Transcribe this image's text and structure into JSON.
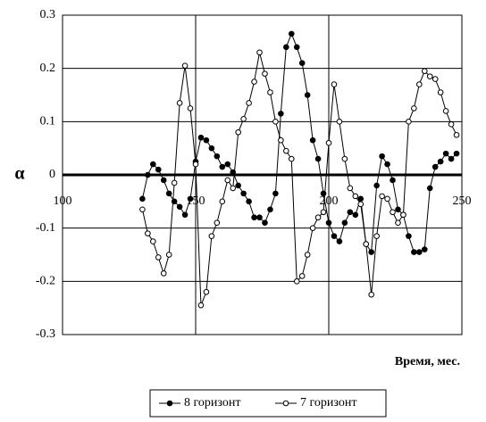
{
  "chart_data": {
    "type": "line",
    "ylabel": "α",
    "xlabel": "Время, мес.",
    "x": [
      130,
      132,
      134,
      136,
      138,
      140,
      142,
      144,
      146,
      148,
      150,
      152,
      154,
      156,
      158,
      160,
      162,
      164,
      166,
      168,
      170,
      172,
      174,
      176,
      178,
      180,
      182,
      184,
      186,
      188,
      190,
      192,
      194,
      196,
      198,
      200,
      202,
      204,
      206,
      208,
      210,
      212,
      214,
      216,
      218,
      220,
      222,
      224,
      226,
      228,
      230,
      232,
      234,
      236,
      238,
      240,
      242,
      244,
      246,
      248
    ],
    "series": [
      {
        "name": "8 горизонт",
        "color": "#000000",
        "marker": "filled",
        "values": [
          -0.045,
          0.0,
          0.02,
          0.01,
          -0.01,
          -0.035,
          -0.05,
          -0.06,
          -0.075,
          -0.045,
          0.025,
          0.07,
          0.065,
          0.05,
          0.035,
          0.015,
          0.02,
          0.005,
          -0.02,
          -0.035,
          -0.05,
          -0.08,
          -0.08,
          -0.09,
          -0.065,
          -0.035,
          0.115,
          0.24,
          0.265,
          0.24,
          0.21,
          0.15,
          0.065,
          0.03,
          -0.035,
          -0.09,
          -0.115,
          -0.125,
          -0.09,
          -0.07,
          -0.075,
          -0.045,
          -0.13,
          -0.145,
          -0.02,
          0.035,
          0.02,
          -0.01,
          -0.065,
          -0.075,
          -0.115,
          -0.145,
          -0.145,
          -0.14,
          -0.025,
          0.015,
          0.025,
          0.04,
          0.03,
          0.04
        ]
      },
      {
        "name": "7 горизонт",
        "color": "#000000",
        "marker": "open",
        "values": [
          -0.065,
          -0.11,
          -0.125,
          -0.155,
          -0.185,
          -0.15,
          -0.015,
          0.135,
          0.205,
          0.125,
          0.02,
          -0.245,
          -0.22,
          -0.115,
          -0.09,
          -0.05,
          -0.01,
          -0.025,
          0.08,
          0.105,
          0.135,
          0.175,
          0.23,
          0.19,
          0.155,
          0.1,
          0.065,
          0.045,
          0.03,
          -0.2,
          -0.19,
          -0.15,
          -0.1,
          -0.08,
          -0.07,
          0.06,
          0.17,
          0.1,
          0.03,
          -0.025,
          -0.04,
          -0.055,
          -0.13,
          -0.225,
          -0.115,
          -0.04,
          -0.045,
          -0.07,
          -0.09,
          -0.075,
          0.1,
          0.125,
          0.17,
          0.195,
          0.185,
          0.18,
          0.155,
          0.12,
          0.095,
          0.075
        ]
      }
    ],
    "xlim": [
      100,
      250
    ],
    "xticks": [
      100,
      150,
      200,
      250
    ],
    "ylim": [
      -0.3,
      0.3
    ],
    "yticks": [
      0.3,
      0.2,
      0.1,
      0,
      -0.1,
      -0.2,
      -0.3
    ],
    "grid": true,
    "legend": "bottom"
  }
}
